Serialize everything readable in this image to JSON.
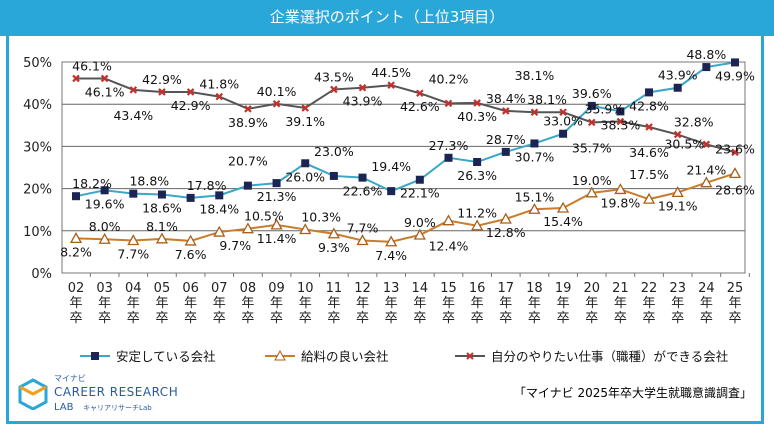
{
  "title": "企業選択のポイント（上位3項目）",
  "source": "「マイナビ 2025年卒大学生就職意識調査」",
  "logo": {
    "top": "マイナビ",
    "main": "CAREER RESEARCH",
    "sub1": "LAB",
    "sub2": "キャリアリサーチLab"
  },
  "chart_data": {
    "type": "line",
    "title": "企業選択のポイント（上位3項目）",
    "categories": [
      "02年卒",
      "03年卒",
      "04年卒",
      "05年卒",
      "06年卒",
      "07年卒",
      "08年卒",
      "09年卒",
      "10年卒",
      "11年卒",
      "12年卒",
      "13年卒",
      "14年卒",
      "15年卒",
      "16年卒",
      "17年卒",
      "18年卒",
      "19年卒",
      "20年卒",
      "21年卒",
      "22年卒",
      "23年卒",
      "24年卒",
      "25年卒"
    ],
    "tick_labels": [
      [
        "02",
        "年",
        "卒"
      ],
      [
        "03",
        "年",
        "卒"
      ],
      [
        "04",
        "年",
        "卒"
      ],
      [
        "05",
        "年",
        "卒"
      ],
      [
        "06",
        "年",
        "卒"
      ],
      [
        "07",
        "年",
        "卒"
      ],
      [
        "08",
        "年",
        "卒"
      ],
      [
        "09",
        "年",
        "卒"
      ],
      [
        "10",
        "年",
        "卒"
      ],
      [
        "11",
        "年",
        "卒"
      ],
      [
        "12",
        "年",
        "卒"
      ],
      [
        "13",
        "年",
        "卒"
      ],
      [
        "14",
        "年",
        "卒"
      ],
      [
        "15",
        "年",
        "卒"
      ],
      [
        "16",
        "年",
        "卒"
      ],
      [
        "17",
        "年",
        "卒"
      ],
      [
        "18",
        "年",
        "卒"
      ],
      [
        "19",
        "年",
        "卒"
      ],
      [
        "20",
        "年",
        "卒"
      ],
      [
        "21",
        "年",
        "卒"
      ],
      [
        "22",
        "年",
        "卒"
      ],
      [
        "23",
        "年",
        "卒"
      ],
      [
        "24",
        "年",
        "卒"
      ],
      [
        "25",
        "年",
        "卒"
      ]
    ],
    "ylim": [
      0,
      50
    ],
    "yticks": [
      "0%",
      "10%",
      "20%",
      "30%",
      "40%",
      "50%"
    ],
    "grid": true,
    "legend": "bottom",
    "series": [
      {
        "name": "安定している会社",
        "color": "#3aa6c8",
        "marker_color": "#1b2453",
        "marker": "square",
        "values": [
          18.2,
          19.6,
          18.8,
          18.6,
          17.8,
          18.4,
          20.7,
          21.3,
          26.0,
          23.0,
          22.6,
          19.4,
          22.1,
          27.3,
          26.3,
          28.7,
          30.7,
          33.0,
          39.6,
          38.3,
          42.8,
          43.9,
          48.8,
          49.9
        ]
      },
      {
        "name": "給料の良い会社",
        "color": "#c97d2c",
        "marker_color": "#a85f1a",
        "marker": "triangle",
        "values": [
          8.2,
          8.0,
          7.7,
          8.1,
          7.6,
          9.7,
          10.5,
          11.4,
          10.3,
          9.3,
          7.7,
          7.4,
          9.0,
          12.4,
          11.2,
          12.8,
          15.1,
          15.4,
          19.0,
          19.8,
          17.5,
          19.1,
          21.4,
          23.6
        ]
      },
      {
        "name": "自分のやりたい仕事（職種）ができる会社",
        "color": "#555555",
        "marker_color": "#c4302b",
        "marker": "x",
        "values": [
          46.1,
          46.1,
          43.4,
          42.9,
          42.9,
          41.8,
          38.9,
          40.1,
          39.1,
          43.5,
          43.9,
          44.5,
          42.6,
          40.2,
          40.3,
          38.4,
          38.1,
          38.1,
          35.7,
          35.9,
          34.6,
          32.8,
          30.5,
          28.6
        ]
      }
    ]
  }
}
